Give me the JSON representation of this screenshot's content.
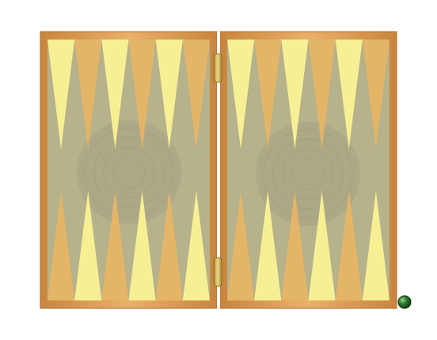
{
  "game": {
    "type": "backgammon",
    "board": {
      "halves": [
        {
          "name": "left-half",
          "points_top": 6,
          "points_bottom": 6
        },
        {
          "name": "right-half",
          "points_top": 6,
          "points_bottom": 6
        }
      ],
      "checkers_on_board": 0
    },
    "colors": {
      "background": "#ffffff",
      "frame_wood": "#e1a45c",
      "frame_wood_dark": "#c27a37",
      "felt": "#b5b28c",
      "felt_emblem": "#a9a586",
      "point_light": "#fbf294",
      "point_dark": "#e8b565",
      "hinge": "#c8a54c",
      "marker_ball": "#2e7a2e"
    },
    "icons": {
      "hinges": "hinge-icon",
      "marker": "green-ball-icon"
    }
  }
}
